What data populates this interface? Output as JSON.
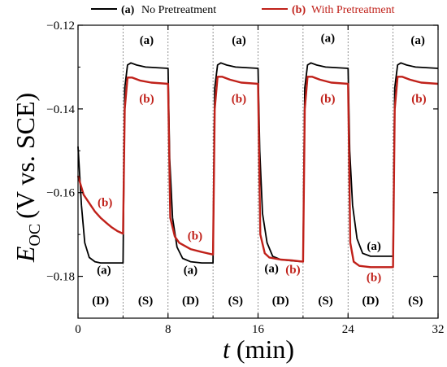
{
  "chart_data": {
    "type": "line",
    "xlabel_symbol": "t",
    "xlabel_unit": "(min)",
    "ylabel_symbol": "E",
    "ylabel_subscript": "OC",
    "ylabel_unit": "(V vs. SCE)",
    "xlim": [
      0,
      32
    ],
    "ylim": [
      -0.19,
      -0.12
    ],
    "xticks": [
      0,
      8,
      16,
      24,
      32
    ],
    "xtick_labels": [
      "0",
      "8",
      "16",
      "24",
      "32"
    ],
    "yticks": [
      -0.18,
      -0.16,
      -0.14,
      -0.12
    ],
    "ytick_labels": [
      "−0.18",
      "−0.16",
      "−0.14",
      "−0.12"
    ],
    "phase_boundaries": [
      4,
      8,
      12,
      16,
      20,
      24,
      28
    ],
    "phases": [
      {
        "x": 2,
        "label": "(D)"
      },
      {
        "x": 6,
        "label": "(S)"
      },
      {
        "x": 10,
        "label": "(D)"
      },
      {
        "x": 14,
        "label": "(S)"
      },
      {
        "x": 18,
        "label": "(D)"
      },
      {
        "x": 22,
        "label": "(S)"
      },
      {
        "x": 26,
        "label": "(D)"
      },
      {
        "x": 30,
        "label": "(S)"
      }
    ],
    "legend_position": "top",
    "series": [
      {
        "name": "No Pretreatment",
        "marker": "(a)",
        "color": "#000000",
        "x": [
          0,
          0.3,
          0.6,
          1,
          1.5,
          2,
          3,
          4,
          4.15,
          4.4,
          4.7,
          5.2,
          6,
          8,
          8.15,
          8.4,
          8.8,
          9.3,
          10,
          11,
          12,
          12.15,
          12.4,
          12.7,
          13.2,
          14,
          16,
          16.15,
          16.4,
          16.8,
          17.3,
          18,
          19,
          20,
          20.15,
          20.4,
          20.7,
          21.2,
          22,
          24,
          24.15,
          24.4,
          24.8,
          25.3,
          26,
          27,
          28,
          28.15,
          28.4,
          28.7,
          29.2,
          30,
          32
        ],
        "y": [
          -0.149,
          -0.163,
          -0.172,
          -0.1755,
          -0.1765,
          -0.1768,
          -0.1768,
          -0.1768,
          -0.135,
          -0.1295,
          -0.129,
          -0.1295,
          -0.13,
          -0.1303,
          -0.152,
          -0.166,
          -0.173,
          -0.1757,
          -0.1765,
          -0.1768,
          -0.1768,
          -0.135,
          -0.1295,
          -0.129,
          -0.1295,
          -0.13,
          -0.1303,
          -0.15,
          -0.165,
          -0.172,
          -0.1752,
          -0.176,
          -0.1763,
          -0.1765,
          -0.135,
          -0.1295,
          -0.129,
          -0.1295,
          -0.13,
          -0.1303,
          -0.15,
          -0.163,
          -0.171,
          -0.1745,
          -0.1752,
          -0.1752,
          -0.1752,
          -0.135,
          -0.1295,
          -0.129,
          -0.1295,
          -0.13,
          -0.1303
        ]
      },
      {
        "name": "With Pretreatment",
        "marker": "(b)",
        "color": "#c0211a",
        "x": [
          0,
          0.5,
          1,
          1.5,
          2,
          2.5,
          3,
          3.5,
          4,
          4.15,
          4.4,
          4.8,
          5.5,
          6.5,
          8,
          8.2,
          8.6,
          9,
          10,
          11,
          12,
          12.15,
          12.4,
          12.8,
          13.5,
          14.5,
          16,
          16.2,
          16.6,
          17,
          18,
          19,
          20,
          20.15,
          20.4,
          20.8,
          21.5,
          22.5,
          24,
          24.2,
          24.5,
          25,
          26,
          27,
          28,
          28.15,
          28.4,
          28.8,
          29.5,
          30.5,
          32
        ],
        "y": [
          -0.156,
          -0.1605,
          -0.1625,
          -0.1645,
          -0.166,
          -0.1672,
          -0.1683,
          -0.1692,
          -0.1698,
          -0.14,
          -0.1325,
          -0.1325,
          -0.1332,
          -0.1337,
          -0.134,
          -0.166,
          -0.1705,
          -0.172,
          -0.1735,
          -0.1742,
          -0.1748,
          -0.14,
          -0.1323,
          -0.1323,
          -0.133,
          -0.1337,
          -0.134,
          -0.17,
          -0.1745,
          -0.1755,
          -0.176,
          -0.1762,
          -0.1765,
          -0.14,
          -0.1323,
          -0.1323,
          -0.133,
          -0.1337,
          -0.134,
          -0.172,
          -0.1765,
          -0.1775,
          -0.1778,
          -0.1778,
          -0.1778,
          -0.14,
          -0.1323,
          -0.1323,
          -0.133,
          -0.1337,
          -0.134
        ]
      }
    ],
    "annotations": [
      {
        "text": "(a)",
        "x": 6.1,
        "y": -0.1245,
        "series": 0
      },
      {
        "text": "(b)",
        "x": 6.1,
        "y": -0.1385,
        "series": 1
      },
      {
        "text": "(a)",
        "x": 2.3,
        "y": -0.1794,
        "series": 0
      },
      {
        "text": "(b)",
        "x": 2.4,
        "y": -0.1633,
        "series": 1
      },
      {
        "text": "(a)",
        "x": 14.3,
        "y": -0.1245,
        "series": 0
      },
      {
        "text": "(b)",
        "x": 14.3,
        "y": -0.1385,
        "series": 1
      },
      {
        "text": "(a)",
        "x": 10.0,
        "y": -0.1794,
        "series": 0
      },
      {
        "text": "(b)",
        "x": 10.4,
        "y": -0.1712,
        "series": 1
      },
      {
        "text": "(a)",
        "x": 22.2,
        "y": -0.124,
        "series": 0
      },
      {
        "text": "(b)",
        "x": 22.2,
        "y": -0.1385,
        "series": 1
      },
      {
        "text": "(a)",
        "x": 17.2,
        "y": -0.179,
        "series": 0
      },
      {
        "text": "(b)",
        "x": 19.1,
        "y": -0.1793,
        "series": 1
      },
      {
        "text": "(a)",
        "x": 30.2,
        "y": -0.1245,
        "series": 0
      },
      {
        "text": "(b)",
        "x": 30.3,
        "y": -0.1385,
        "series": 1
      },
      {
        "text": "(a)",
        "x": 26.3,
        "y": -0.1737,
        "series": 0
      },
      {
        "text": "(b)",
        "x": 26.3,
        "y": -0.1812,
        "series": 1
      }
    ]
  }
}
